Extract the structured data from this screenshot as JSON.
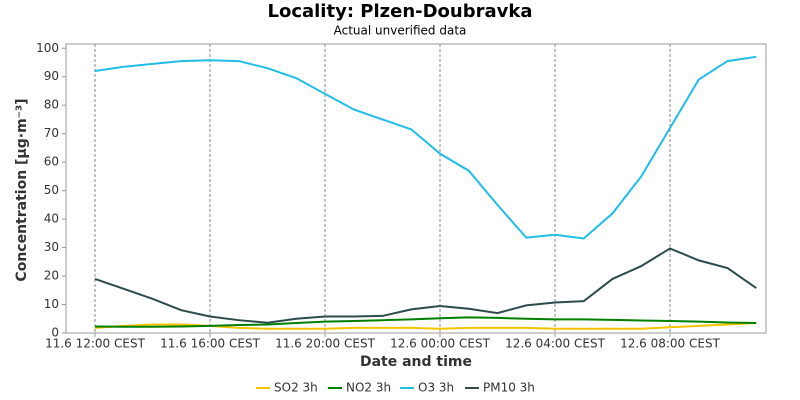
{
  "chart_data": {
    "type": "line",
    "title": "Locality: Plzen-Doubravka",
    "subtitle": "Actual unverified data",
    "x_label": "Date and time",
    "y_label": "Concentration [µg·m⁻³]",
    "categories": [
      "11.6 12:00 CEST",
      null,
      null,
      null,
      "11.6 16:00 CEST",
      null,
      null,
      null,
      "11.6 20:00 CEST",
      null,
      null,
      null,
      "12.6 00:00 CEST",
      null,
      null,
      null,
      "12.6 04:00 CEST",
      null,
      null,
      null,
      "12.6 08:00 CEST",
      null,
      null,
      null
    ],
    "ylim": [
      0,
      101.5
    ],
    "yticks": [
      0,
      10,
      20,
      30,
      40,
      50,
      60,
      70,
      80,
      90,
      100
    ],
    "grid": "x",
    "legend": "bottom",
    "series": [
      {
        "name": "SO2 3h",
        "color": "#f5c400",
        "values": [
          1.8,
          2.5,
          3,
          3,
          2.5,
          1.8,
          1.5,
          1.5,
          1.5,
          1.8,
          1.8,
          1.8,
          1.5,
          1.8,
          1.8,
          1.8,
          1.5,
          1.5,
          1.5,
          1.5,
          2,
          2.5,
          3,
          3.5
        ]
      },
      {
        "name": "NO2 3h",
        "color": "#008000",
        "values": [
          2.3,
          2.2,
          2.2,
          2.3,
          2.5,
          2.8,
          3,
          3.5,
          4,
          4.2,
          4.5,
          4.8,
          5.2,
          5.5,
          5.3,
          5,
          4.8,
          4.8,
          4.6,
          4.4,
          4.2,
          4,
          3.7,
          3.5
        ]
      },
      {
        "name": "O3 3h",
        "color": "#1ebee8",
        "values": [
          92,
          93.5,
          94.5,
          95.5,
          95.8,
          95.5,
          93,
          89.5,
          84,
          78.5,
          75,
          71.5,
          63,
          57,
          45,
          33.5,
          34.5,
          33.2,
          42,
          55,
          72,
          89,
          95.5,
          97
        ]
      },
      {
        "name": "PM10 3h",
        "color": "#2d4b4b",
        "values": [
          19,
          15.5,
          12,
          8,
          5.8,
          4.5,
          3.6,
          5,
          5.8,
          5.8,
          6,
          8.3,
          9.5,
          8.5,
          7,
          9.7,
          10.7,
          11.2,
          19,
          23.5,
          29.7,
          25.5,
          22.8,
          15.8
        ]
      }
    ]
  }
}
